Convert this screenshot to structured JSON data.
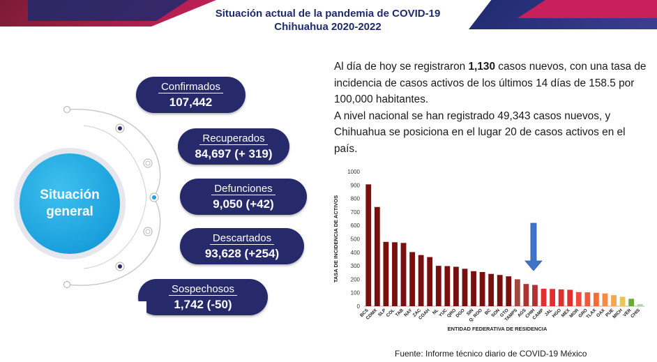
{
  "title": {
    "line1": "Situación actual de la pandemia de COVID-19",
    "line2": "Chihuahua 2020-2022"
  },
  "center_label": "Situación general",
  "stats": [
    {
      "label": "Confirmados",
      "value": "107,442"
    },
    {
      "label": "Recuperados",
      "value": "84,697 (+ 319)"
    },
    {
      "label": "Defunciones",
      "value": "9,050 (+42)"
    },
    {
      "label": "Descartados",
      "value": "93,628 (+254)"
    },
    {
      "label": "Sospechosos",
      "value": "1,742 (-50)"
    }
  ],
  "summary": {
    "p1_a": "Al día de hoy se registraron ",
    "p1_bold": "1,130",
    "p1_b": " casos nuevos, con una tasa de incidencia de casos activos de los últimos 14 días de 158.5 por 100,000 habitantes.",
    "p2": "A nivel nacional se han registrado 49,343 casos nuevos, y Chihuahua se posiciona en el lugar 20 de casos activos en el país."
  },
  "source": "Fuente: Informe técnico diario de COVID-19 México",
  "colors": {
    "navy": "#262a6a",
    "cyan": "#1aa0dc",
    "arrow": "#3f74c9"
  },
  "chart_data": {
    "type": "bar",
    "title": "",
    "xlabel": "ENTIDAD FEDERATIVA DE RESIDENCIA",
    "ylabel": "TASA DE INCIDENCIA DE ACTIVOS",
    "ylim": [
      0,
      1000
    ],
    "yticks": [
      0,
      100,
      200,
      300,
      400,
      500,
      600,
      700,
      800,
      900,
      1000
    ],
    "grid": false,
    "highlight": "CHIH",
    "categories": [
      "BCS",
      "CDMX",
      "SLP",
      "COL",
      "TAB",
      "NAY",
      "ZAC",
      "COAH",
      "NL",
      "YUC",
      "QRO",
      "DGO",
      "SIN",
      "Q. ROO",
      "BC",
      "SON",
      "GTO",
      "TAMPS",
      "AGS",
      "CHIH",
      "CAMP",
      "JAL",
      "HGO",
      "MEX",
      "MOR",
      "GRO",
      "TLAX",
      "OAX",
      "PUE",
      "MICH",
      "VER",
      "CHIS"
    ],
    "values": [
      905,
      737,
      478,
      475,
      470,
      402,
      380,
      365,
      300,
      298,
      293,
      278,
      260,
      254,
      240,
      232,
      222,
      200,
      165,
      158,
      130,
      128,
      125,
      122,
      105,
      103,
      100,
      95,
      82,
      70,
      55,
      15
    ],
    "bar_colors": [
      "#7a0f0f",
      "#7a0f0f",
      "#7a0f0f",
      "#7a0f0f",
      "#7a0f0f",
      "#7a0f0f",
      "#7a0f0f",
      "#7a0f0f",
      "#7a0f0f",
      "#7a0f0f",
      "#7a0f0f",
      "#7a0f0f",
      "#7a0f0f",
      "#7a0f0f",
      "#7a0f0f",
      "#7a0f0f",
      "#7a0f0f",
      "#a0493c",
      "#b23232",
      "#b23232",
      "#e02f2f",
      "#e02f2f",
      "#e02f2f",
      "#e02f2f",
      "#ef4a3c",
      "#ef5a3e",
      "#f56c3a",
      "#f78a42",
      "#f8a54c",
      "#ebc64c",
      "#6aaa3a",
      "#a9d8a0"
    ]
  }
}
